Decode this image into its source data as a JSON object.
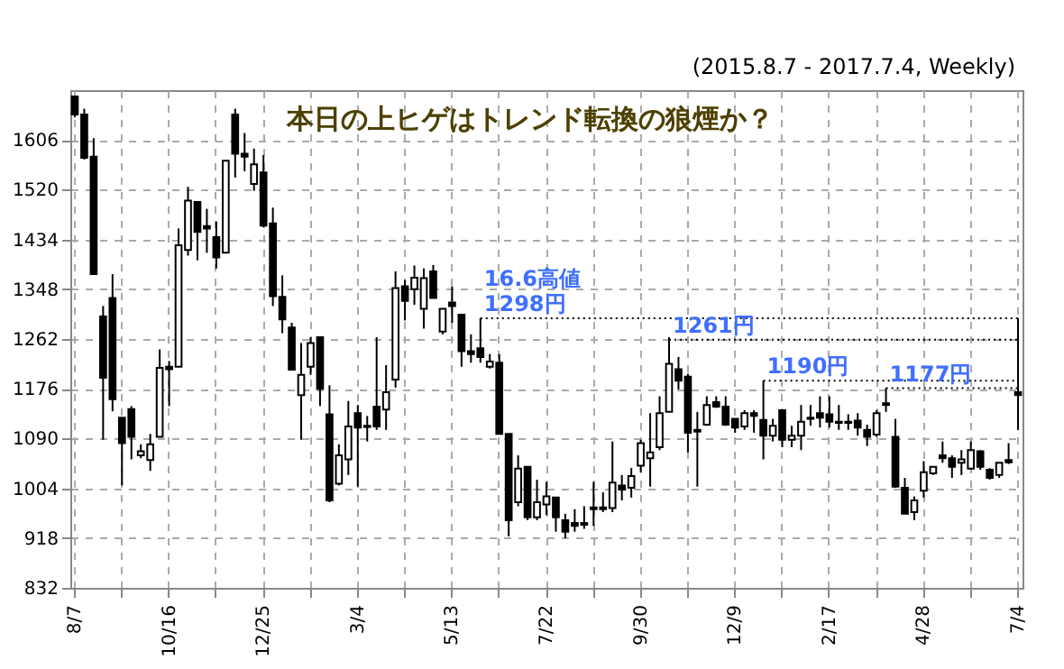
{
  "chart_data": {
    "type": "candlestick",
    "title": "本日の上ヒゲはトレンド転換の狼煙か？",
    "subtitle": "(2015.8.7 - 2017.7.4, Weekly)",
    "categories": [
      "8/7",
      null,
      null,
      null,
      null,
      null,
      null,
      null,
      null,
      null,
      "10/16",
      null,
      null,
      null,
      null,
      null,
      null,
      null,
      null,
      null,
      "12/25",
      null,
      null,
      null,
      null,
      null,
      null,
      null,
      null,
      null,
      "3/4",
      null,
      null,
      null,
      null,
      null,
      null,
      null,
      null,
      null,
      "5/13",
      null,
      null,
      null,
      null,
      null,
      null,
      null,
      null,
      null,
      "7/22",
      null,
      null,
      null,
      null,
      null,
      null,
      null,
      null,
      null,
      "9/30",
      null,
      null,
      null,
      null,
      null,
      null,
      null,
      null,
      null,
      "12/9",
      null,
      null,
      null,
      null,
      null,
      null,
      null,
      null,
      null,
      "2/17",
      null,
      null,
      null,
      null,
      null,
      null,
      null,
      null,
      null,
      "4/28",
      null,
      null,
      null,
      null,
      null,
      null,
      null,
      null,
      null,
      "7/4"
    ],
    "ohlc": [
      [
        1681,
        1681,
        1645,
        1650
      ],
      [
        1650,
        1660,
        1572,
        1575
      ],
      [
        1577,
        1609,
        1374,
        1374
      ],
      [
        1301,
        1319,
        1088,
        1195
      ],
      [
        1333,
        1374,
        1137,
        1158
      ],
      [
        1126,
        1126,
        1009,
        1082
      ],
      [
        1141,
        1146,
        1054,
        1093
      ],
      [
        1061,
        1080,
        1056,
        1068
      ],
      [
        1053,
        1098,
        1034,
        1080
      ],
      [
        1093,
        1244,
        1093,
        1212
      ],
      [
        1214,
        1224,
        1146,
        1210
      ],
      [
        1214,
        1453,
        1214,
        1424
      ],
      [
        1416,
        1525,
        1406,
        1501
      ],
      [
        1499,
        1499,
        1398,
        1447
      ],
      [
        1457,
        1487,
        1411,
        1453
      ],
      [
        1438,
        1465,
        1384,
        1403
      ],
      [
        1411,
        1570,
        1411,
        1570
      ],
      [
        1650,
        1660,
        1541,
        1582
      ],
      [
        1582,
        1618,
        1552,
        1577
      ],
      [
        1530,
        1591,
        1518,
        1564
      ],
      [
        1550,
        1580,
        1455,
        1458
      ],
      [
        1462,
        1489,
        1319,
        1336
      ],
      [
        1335,
        1372,
        1272,
        1296
      ],
      [
        1282,
        1290,
        1209,
        1209
      ],
      [
        1165,
        1255,
        1088,
        1200
      ],
      [
        1214,
        1265,
        1200,
        1255
      ],
      [
        1265,
        1265,
        1146,
        1176
      ],
      [
        1132,
        1182,
        980,
        983
      ],
      [
        1012,
        1080,
        1009,
        1061
      ],
      [
        1054,
        1155,
        1027,
        1111
      ],
      [
        1134,
        1148,
        1007,
        1109
      ],
      [
        1112,
        1129,
        1085,
        1110
      ],
      [
        1145,
        1265,
        1105,
        1111
      ],
      [
        1140,
        1217,
        1105,
        1170
      ],
      [
        1192,
        1379,
        1178,
        1350
      ],
      [
        1353,
        1364,
        1294,
        1328
      ],
      [
        1348,
        1389,
        1321,
        1368
      ],
      [
        1314,
        1384,
        1280,
        1367
      ],
      [
        1379,
        1390,
        1333,
        1333
      ],
      [
        1275,
        1314,
        1270,
        1314
      ],
      [
        1325,
        1353,
        1290,
        1319
      ],
      [
        1304,
        1304,
        1214,
        1241
      ],
      [
        1241,
        1270,
        1221,
        1236
      ],
      [
        1246,
        1298,
        1221,
        1231
      ],
      [
        1214,
        1236,
        1211,
        1223
      ],
      [
        1221,
        1236,
        1098,
        1098
      ],
      [
        1098,
        1098,
        921,
        949
      ],
      [
        980,
        1061,
        973,
        1038
      ],
      [
        1041,
        1041,
        949,
        954
      ],
      [
        954,
        1019,
        949,
        980
      ],
      [
        976,
        1015,
        958,
        990
      ],
      [
        988,
        988,
        929,
        954
      ],
      [
        949,
        960,
        918,
        929
      ],
      [
        944,
        968,
        929,
        939
      ],
      [
        944,
        973,
        934,
        941
      ],
      [
        968,
        1015,
        939,
        971
      ],
      [
        968,
        997,
        963,
        971
      ],
      [
        970,
        1085,
        963,
        1014
      ],
      [
        1009,
        1027,
        983,
        1002
      ],
      [
        1005,
        1039,
        988,
        1025
      ],
      [
        1043,
        1088,
        1032,
        1082
      ],
      [
        1056,
        1134,
        1007,
        1066
      ],
      [
        1075,
        1163,
        1070,
        1134
      ],
      [
        1136,
        1265,
        1136,
        1219
      ],
      [
        1210,
        1231,
        1175,
        1190
      ],
      [
        1197,
        1202,
        1066,
        1100
      ],
      [
        1105,
        1136,
        1007,
        1102
      ],
      [
        1114,
        1163,
        1112,
        1148
      ],
      [
        1153,
        1163,
        1143,
        1145
      ],
      [
        1145,
        1163,
        1112,
        1114
      ],
      [
        1124,
        1124,
        1100,
        1109
      ],
      [
        1111,
        1139,
        1105,
        1134
      ],
      [
        1134,
        1139,
        1100,
        1129
      ],
      [
        1122,
        1190,
        1054,
        1095
      ],
      [
        1095,
        1124,
        1085,
        1112
      ],
      [
        1139,
        1139,
        1075,
        1088
      ],
      [
        1088,
        1112,
        1075,
        1095
      ],
      [
        1095,
        1148,
        1070,
        1119
      ],
      [
        1124,
        1148,
        1112,
        1126
      ],
      [
        1134,
        1163,
        1109,
        1126
      ],
      [
        1132,
        1163,
        1109,
        1119
      ],
      [
        1119,
        1148,
        1105,
        1117
      ],
      [
        1119,
        1132,
        1105,
        1117
      ],
      [
        1121,
        1134,
        1095,
        1109
      ],
      [
        1105,
        1114,
        1077,
        1093
      ],
      [
        1097,
        1139,
        1093,
        1134
      ],
      [
        1148,
        1177,
        1136,
        1151
      ],
      [
        1093,
        1124,
        1005,
        1007
      ],
      [
        1005,
        1022,
        960,
        960
      ],
      [
        963,
        990,
        949,
        983
      ],
      [
        1000,
        1051,
        988,
        1032
      ],
      [
        1030,
        1041,
        1027,
        1041
      ],
      [
        1061,
        1085,
        1048,
        1056
      ],
      [
        1056,
        1061,
        1022,
        1041
      ],
      [
        1048,
        1070,
        1027,
        1054
      ],
      [
        1038,
        1085,
        1036,
        1070
      ],
      [
        1068,
        1070,
        1036,
        1041
      ],
      [
        1036,
        1039,
        1019,
        1022
      ],
      [
        1027,
        1048,
        1022,
        1048
      ],
      [
        1053,
        1082,
        1046,
        1049
      ],
      [
        1170,
        1298,
        1105,
        1165
      ]
    ],
    "ylim": [
      832,
      1692
    ],
    "yticks": [
      832,
      918,
      1004,
      1090,
      1176,
      1262,
      1348,
      1434,
      1520,
      1606
    ],
    "grid": true,
    "ref_lines": [
      {
        "axis": "y",
        "value": 1298,
        "label": "1298円",
        "color": "#000000",
        "line_style": "dotted"
      },
      {
        "axis": "y",
        "value": 1261,
        "label": "1261円",
        "color": "#000000",
        "line_style": "dotted"
      },
      {
        "axis": "y",
        "value": 1190,
        "label": "1190円",
        "color": "#000000",
        "line_style": "dotted"
      },
      {
        "axis": "y",
        "value": 1177,
        "label": "1177円",
        "color": "#000000",
        "line_style": "dotted"
      }
    ],
    "annotations": [
      {
        "text": "16.6高値",
        "y": 1298
      }
    ]
  }
}
